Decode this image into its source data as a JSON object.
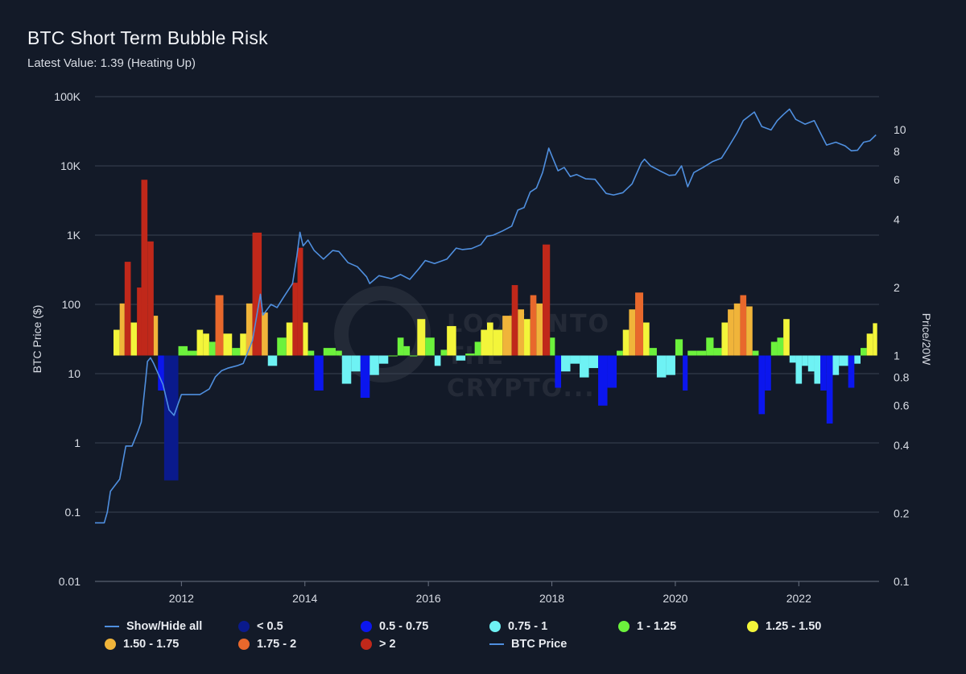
{
  "title": "BTC Short Term Bubble Risk",
  "subtitle": "Latest Value: 1.39 (Heating Up)",
  "watermark": [
    "LOOK INTO",
    "THE",
    "CRYPTO..."
  ],
  "colors": {
    "background": "#131a28",
    "grid": "#3a4252",
    "price_line": "#4f8fdf",
    "axis_text": "#d9dde5"
  },
  "legend": [
    {
      "label": "Show/Hide all",
      "kind": "line",
      "color": "#4f8fdf"
    },
    {
      "label": "< 0.5",
      "kind": "dot",
      "color": "#0a1a8c"
    },
    {
      "label": "0.5 - 0.75",
      "kind": "dot",
      "color": "#0b16ee"
    },
    {
      "label": "0.75 - 1",
      "kind": "dot",
      "color": "#6ef2f4"
    },
    {
      "label": "1 - 1.25",
      "kind": "dot",
      "color": "#6cf23c"
    },
    {
      "label": "1.25 - 1.50",
      "kind": "dot",
      "color": "#f3f53a"
    },
    {
      "label": "1.50 - 1.75",
      "kind": "dot",
      "color": "#f0b43a"
    },
    {
      "label": "1.75 - 2",
      "kind": "dot",
      "color": "#e8682c"
    },
    {
      "label": "> 2",
      "kind": "dot",
      "color": "#c0281a"
    },
    {
      "label": "BTC Price",
      "kind": "line",
      "color": "#4f8fdf"
    }
  ],
  "chart_data": {
    "type": "bar+line",
    "title": "BTC Short Term Bubble Risk",
    "subtitle": "Latest Value: 1.39 (Heating Up)",
    "x_range": [
      2010.6,
      2023.3
    ],
    "x_ticks": [
      2012,
      2014,
      2016,
      2018,
      2020,
      2022
    ],
    "x_tick_labels": [
      "2012",
      "2014",
      "2016",
      "2018",
      "2020",
      "2022"
    ],
    "y_left": {
      "label": "BTC Price ($)",
      "scale": "log",
      "range": [
        0.01,
        100000
      ],
      "ticks": [
        0.01,
        0.1,
        1,
        10,
        100,
        1000,
        10000,
        100000
      ],
      "tick_labels": [
        "0.01",
        "0.1",
        "1",
        "10",
        "100",
        "1K",
        "10K",
        "100K"
      ]
    },
    "y_right": {
      "label": "Price/20W",
      "scale": "log",
      "range": [
        0.1,
        14
      ],
      "ticks": [
        0.1,
        0.2,
        0.4,
        0.6,
        0.8,
        1,
        2,
        4,
        6,
        8,
        10
      ],
      "tick_labels": [
        "0.1",
        "0.2",
        "0.4",
        "0.6",
        "0.8",
        "1",
        "2",
        "4",
        "6",
        "8",
        "10"
      ]
    },
    "grid": true,
    "legend_position": "bottom",
    "price_series": {
      "name": "BTC Price",
      "points": [
        [
          2010.6,
          0.07
        ],
        [
          2010.75,
          0.07
        ],
        [
          2010.8,
          0.1
        ],
        [
          2010.85,
          0.2
        ],
        [
          2011.0,
          0.3
        ],
        [
          2011.1,
          0.9
        ],
        [
          2011.2,
          0.9
        ],
        [
          2011.3,
          1.5
        ],
        [
          2011.35,
          2
        ],
        [
          2011.42,
          8
        ],
        [
          2011.45,
          15
        ],
        [
          2011.5,
          17
        ],
        [
          2011.55,
          14
        ],
        [
          2011.7,
          7
        ],
        [
          2011.8,
          3
        ],
        [
          2011.88,
          2.5
        ],
        [
          2012.0,
          5
        ],
        [
          2012.15,
          5
        ],
        [
          2012.3,
          5
        ],
        [
          2012.45,
          6
        ],
        [
          2012.55,
          9
        ],
        [
          2012.65,
          11
        ],
        [
          2012.75,
          12
        ],
        [
          2012.9,
          13
        ],
        [
          2013.0,
          14
        ],
        [
          2013.15,
          30
        ],
        [
          2013.28,
          140
        ],
        [
          2013.32,
          70
        ],
        [
          2013.45,
          100
        ],
        [
          2013.55,
          90
        ],
        [
          2013.65,
          125
        ],
        [
          2013.8,
          200
        ],
        [
          2013.87,
          500
        ],
        [
          2013.92,
          1100
        ],
        [
          2013.97,
          700
        ],
        [
          2014.05,
          850
        ],
        [
          2014.15,
          600
        ],
        [
          2014.3,
          450
        ],
        [
          2014.45,
          600
        ],
        [
          2014.55,
          580
        ],
        [
          2014.7,
          400
        ],
        [
          2014.85,
          350
        ],
        [
          2015.0,
          250
        ],
        [
          2015.05,
          200
        ],
        [
          2015.2,
          260
        ],
        [
          2015.4,
          235
        ],
        [
          2015.55,
          270
        ],
        [
          2015.7,
          230
        ],
        [
          2015.85,
          330
        ],
        [
          2015.95,
          430
        ],
        [
          2016.1,
          390
        ],
        [
          2016.3,
          450
        ],
        [
          2016.45,
          650
        ],
        [
          2016.55,
          620
        ],
        [
          2016.7,
          640
        ],
        [
          2016.85,
          730
        ],
        [
          2016.95,
          960
        ],
        [
          2017.05,
          1000
        ],
        [
          2017.2,
          1150
        ],
        [
          2017.35,
          1350
        ],
        [
          2017.45,
          2300
        ],
        [
          2017.55,
          2500
        ],
        [
          2017.65,
          4200
        ],
        [
          2017.75,
          4800
        ],
        [
          2017.85,
          8000
        ],
        [
          2017.95,
          18000
        ],
        [
          2018.0,
          14000
        ],
        [
          2018.1,
          8500
        ],
        [
          2018.2,
          9500
        ],
        [
          2018.3,
          7000
        ],
        [
          2018.4,
          7500
        ],
        [
          2018.55,
          6500
        ],
        [
          2018.7,
          6400
        ],
        [
          2018.88,
          4000
        ],
        [
          2019.0,
          3800
        ],
        [
          2019.15,
          4100
        ],
        [
          2019.3,
          5500
        ],
        [
          2019.45,
          11000
        ],
        [
          2019.5,
          12500
        ],
        [
          2019.6,
          10000
        ],
        [
          2019.75,
          8500
        ],
        [
          2019.9,
          7300
        ],
        [
          2020.0,
          7400
        ],
        [
          2020.1,
          10000
        ],
        [
          2020.2,
          5000
        ],
        [
          2020.3,
          8000
        ],
        [
          2020.45,
          9500
        ],
        [
          2020.6,
          11500
        ],
        [
          2020.75,
          13000
        ],
        [
          2020.85,
          18000
        ],
        [
          2021.0,
          30000
        ],
        [
          2021.1,
          45000
        ],
        [
          2021.28,
          60000
        ],
        [
          2021.4,
          37000
        ],
        [
          2021.55,
          33000
        ],
        [
          2021.65,
          45000
        ],
        [
          2021.75,
          55000
        ],
        [
          2021.85,
          66000
        ],
        [
          2021.95,
          47000
        ],
        [
          2022.1,
          40000
        ],
        [
          2022.25,
          45000
        ],
        [
          2022.35,
          30000
        ],
        [
          2022.45,
          20000
        ],
        [
          2022.6,
          22000
        ],
        [
          2022.75,
          19500
        ],
        [
          2022.85,
          16500
        ],
        [
          2022.95,
          16800
        ],
        [
          2023.05,
          22000
        ],
        [
          2023.15,
          23000
        ],
        [
          2023.25,
          28000
        ]
      ]
    },
    "ratio_bands": [
      [
        2010.9,
        2011.0,
        1.3
      ],
      [
        2011.0,
        2011.08,
        1.7
      ],
      [
        2011.08,
        2011.18,
        2.6
      ],
      [
        2011.18,
        2011.28,
        1.4
      ],
      [
        2011.28,
        2011.35,
        2.0
      ],
      [
        2011.35,
        2011.45,
        6.0
      ],
      [
        2011.45,
        2011.55,
        3.2
      ],
      [
        2011.55,
        2011.62,
        1.5
      ],
      [
        2011.62,
        2011.72,
        0.7
      ],
      [
        2011.72,
        2011.95,
        0.28
      ],
      [
        2011.95,
        2012.1,
        1.1
      ],
      [
        2012.1,
        2012.25,
        1.05
      ],
      [
        2012.25,
        2012.35,
        1.3
      ],
      [
        2012.35,
        2012.45,
        1.25
      ],
      [
        2012.45,
        2012.55,
        1.15
      ],
      [
        2012.55,
        2012.68,
        1.85
      ],
      [
        2012.68,
        2012.82,
        1.25
      ],
      [
        2012.82,
        2012.95,
        1.08
      ],
      [
        2012.95,
        2013.05,
        1.25
      ],
      [
        2013.05,
        2013.15,
        1.7
      ],
      [
        2013.15,
        2013.3,
        3.5
      ],
      [
        2013.3,
        2013.4,
        1.55
      ],
      [
        2013.4,
        2013.55,
        0.9
      ],
      [
        2013.55,
        2013.7,
        1.2
      ],
      [
        2013.7,
        2013.8,
        1.4
      ],
      [
        2013.8,
        2013.88,
        2.1
      ],
      [
        2013.88,
        2013.97,
        3.0
      ],
      [
        2013.97,
        2014.05,
        1.4
      ],
      [
        2014.05,
        2014.15,
        1.05
      ],
      [
        2014.15,
        2014.3,
        0.7
      ],
      [
        2014.3,
        2014.5,
        1.08
      ],
      [
        2014.5,
        2014.6,
        1.05
      ],
      [
        2014.6,
        2014.75,
        0.75
      ],
      [
        2014.75,
        2014.9,
        0.85
      ],
      [
        2014.9,
        2015.05,
        0.65
      ],
      [
        2015.05,
        2015.2,
        0.82
      ],
      [
        2015.2,
        2015.35,
        0.92
      ],
      [
        2015.35,
        2015.5,
        1.0
      ],
      [
        2015.5,
        2015.6,
        1.2
      ],
      [
        2015.6,
        2015.7,
        1.1
      ],
      [
        2015.7,
        2015.82,
        1.0
      ],
      [
        2015.82,
        2015.95,
        1.45
      ],
      [
        2015.95,
        2016.1,
        1.2
      ],
      [
        2016.1,
        2016.2,
        0.9
      ],
      [
        2016.2,
        2016.3,
        1.06
      ],
      [
        2016.3,
        2016.45,
        1.35
      ],
      [
        2016.45,
        2016.6,
        0.95
      ],
      [
        2016.6,
        2016.75,
        1.02
      ],
      [
        2016.75,
        2016.85,
        1.15
      ],
      [
        2016.85,
        2016.95,
        1.3
      ],
      [
        2016.95,
        2017.05,
        1.4
      ],
      [
        2017.05,
        2017.2,
        1.3
      ],
      [
        2017.2,
        2017.35,
        1.5
      ],
      [
        2017.35,
        2017.45,
        2.05
      ],
      [
        2017.45,
        2017.55,
        1.6
      ],
      [
        2017.55,
        2017.65,
        1.45
      ],
      [
        2017.65,
        2017.75,
        1.85
      ],
      [
        2017.75,
        2017.85,
        1.7
      ],
      [
        2017.85,
        2017.97,
        3.1
      ],
      [
        2017.97,
        2018.05,
        1.2
      ],
      [
        2018.05,
        2018.15,
        0.72
      ],
      [
        2018.15,
        2018.3,
        0.85
      ],
      [
        2018.3,
        2018.45,
        0.92
      ],
      [
        2018.45,
        2018.6,
        0.8
      ],
      [
        2018.6,
        2018.75,
        0.88
      ],
      [
        2018.75,
        2018.9,
        0.6
      ],
      [
        2018.9,
        2019.05,
        0.72
      ],
      [
        2019.05,
        2019.15,
        1.05
      ],
      [
        2019.15,
        2019.25,
        1.3
      ],
      [
        2019.25,
        2019.35,
        1.6
      ],
      [
        2019.35,
        2019.48,
        1.9
      ],
      [
        2019.48,
        2019.58,
        1.4
      ],
      [
        2019.58,
        2019.7,
        1.08
      ],
      [
        2019.7,
        2019.85,
        0.8
      ],
      [
        2019.85,
        2020.0,
        0.82
      ],
      [
        2020.0,
        2020.12,
        1.18
      ],
      [
        2020.12,
        2020.2,
        0.7
      ],
      [
        2020.2,
        2020.35,
        1.05
      ],
      [
        2020.35,
        2020.5,
        1.05
      ],
      [
        2020.5,
        2020.62,
        1.2
      ],
      [
        2020.62,
        2020.75,
        1.08
      ],
      [
        2020.75,
        2020.85,
        1.4
      ],
      [
        2020.85,
        2020.95,
        1.6
      ],
      [
        2020.95,
        2021.05,
        1.7
      ],
      [
        2021.05,
        2021.15,
        1.85
      ],
      [
        2021.15,
        2021.25,
        1.65
      ],
      [
        2021.25,
        2021.35,
        1.05
      ],
      [
        2021.35,
        2021.45,
        0.55
      ],
      [
        2021.45,
        2021.55,
        0.7
      ],
      [
        2021.55,
        2021.65,
        1.15
      ],
      [
        2021.65,
        2021.75,
        1.2
      ],
      [
        2021.75,
        2021.85,
        1.45
      ],
      [
        2021.85,
        2021.95,
        0.93
      ],
      [
        2021.95,
        2022.05,
        0.75
      ],
      [
        2022.05,
        2022.15,
        0.9
      ],
      [
        2022.15,
        2022.25,
        0.85
      ],
      [
        2022.25,
        2022.35,
        0.75
      ],
      [
        2022.35,
        2022.45,
        0.7
      ],
      [
        2022.45,
        2022.55,
        0.5
      ],
      [
        2022.55,
        2022.65,
        0.82
      ],
      [
        2022.65,
        2022.8,
        0.9
      ],
      [
        2022.8,
        2022.9,
        0.72
      ],
      [
        2022.9,
        2023.0,
        0.92
      ],
      [
        2023.0,
        2023.1,
        1.08
      ],
      [
        2023.1,
        2023.2,
        1.25
      ],
      [
        2023.2,
        2023.27,
        1.39
      ]
    ]
  }
}
